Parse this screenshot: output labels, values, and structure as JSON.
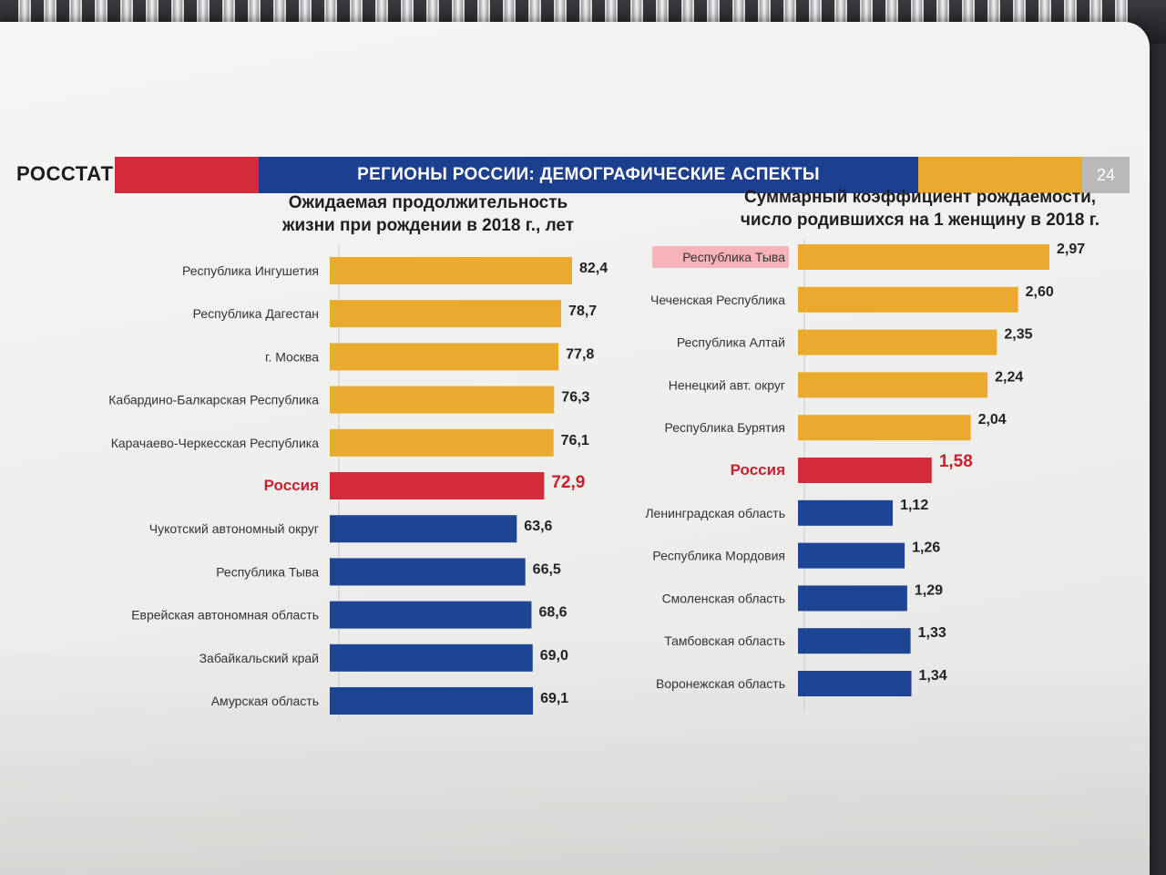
{
  "header": {
    "logo": "РОССТАТ",
    "title": "РЕГИОНЫ РОССИИ: ДЕМОГРАФИЧЕСКИЕ АСПЕКТЫ",
    "page_number": "24"
  },
  "colors": {
    "yellow": "#e9aa2e",
    "blue": "#1d4593",
    "red": "#d42a3a",
    "highlight": "#f6b3ba"
  },
  "chart_data": [
    {
      "type": "bar",
      "orientation": "horizontal",
      "title_lines": [
        "Ожидаемая продолжительность",
        "жизни при рождении в 2018 г., лет"
      ],
      "categories": [
        "Республика Ингушетия",
        "Республика Дагестан",
        "г. Москва",
        "Кабардино-Балкарская Республика",
        "Карачаево-Черкесская Республика",
        "Россия",
        "Чукотский автономный округ",
        "Республика Тыва",
        "Еврейская автономная область",
        "Забайкальский край",
        "Амурская область"
      ],
      "values": [
        82.4,
        78.7,
        77.8,
        76.3,
        76.1,
        72.9,
        63.6,
        66.5,
        68.6,
        69.0,
        69.1
      ],
      "labels": [
        "82,4",
        "78,7",
        "77,8",
        "76,3",
        "76,1",
        "72,9",
        "63,6",
        "66,5",
        "68,6",
        "69,0",
        "69,1"
      ],
      "bar_colors": [
        "yellow",
        "yellow",
        "yellow",
        "yellow",
        "yellow",
        "red",
        "blue",
        "blue",
        "blue",
        "blue",
        "blue"
      ],
      "emphasis_index": 5
    },
    {
      "type": "bar",
      "orientation": "horizontal",
      "title_lines": [
        "Суммарный коэффициент рождаемости,",
        "число родившихся на 1 женщину в 2018 г."
      ],
      "categories": [
        "Республика Тыва",
        "Чеченская Республика",
        "Республика Алтай",
        "Ненецкий авт. округ",
        "Республика Бурятия",
        "Россия",
        "Ленинградская область",
        "Республика Мордовия",
        "Смоленская область",
        "Тамбовская область",
        "Воронежская область"
      ],
      "values": [
        2.97,
        2.6,
        2.35,
        2.24,
        2.04,
        1.58,
        1.12,
        1.26,
        1.29,
        1.33,
        1.34
      ],
      "labels": [
        "2,97",
        "2,60",
        "2,35",
        "2,24",
        "2,04",
        "1,58",
        "1,12",
        "1,26",
        "1,29",
        "1,33",
        "1,34"
      ],
      "bar_colors": [
        "yellow",
        "yellow",
        "yellow",
        "yellow",
        "yellow",
        "red",
        "blue",
        "blue",
        "blue",
        "blue",
        "blue"
      ],
      "emphasis_index": 5,
      "highlighted_category_index": 0
    }
  ]
}
